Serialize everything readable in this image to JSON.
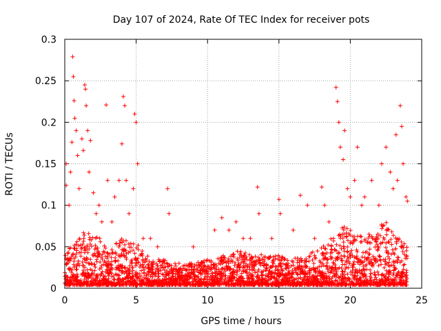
{
  "chart_data": {
    "type": "scatter",
    "title": "Day 107 of 2024, Rate Of TEC Index for receiver pots",
    "xlabel": "GPS time / hours",
    "ylabel": "ROTI / TECUs",
    "xlim": [
      0,
      25
    ],
    "ylim": [
      0,
      0.3
    ],
    "x_ticks": [
      0,
      5,
      10,
      15,
      20,
      25
    ],
    "y_ticks": [
      0,
      0.05,
      0.1,
      0.15,
      0.2,
      0.25,
      0.3
    ],
    "grid": true,
    "marker": "+",
    "series": [
      {
        "color": "#ff0000",
        "points": [
          [
            0.1,
            0.15
          ],
          [
            0.1,
            0.124
          ],
          [
            0.3,
            0.1
          ],
          [
            0.4,
            0.14
          ],
          [
            0.5,
            0.176
          ],
          [
            0.55,
            0.279
          ],
          [
            0.6,
            0.255
          ],
          [
            0.65,
            0.226
          ],
          [
            0.7,
            0.205
          ],
          [
            0.8,
            0.19
          ],
          [
            0.9,
            0.16
          ],
          [
            1.0,
            0.12
          ],
          [
            1.2,
            0.18
          ],
          [
            1.3,
            0.166
          ],
          [
            1.4,
            0.245
          ],
          [
            1.45,
            0.24
          ],
          [
            1.5,
            0.22
          ],
          [
            1.6,
            0.19
          ],
          [
            1.7,
            0.14
          ],
          [
            1.8,
            0.178
          ],
          [
            2.0,
            0.115
          ],
          [
            2.2,
            0.09
          ],
          [
            2.4,
            0.1
          ],
          [
            2.6,
            0.08
          ],
          [
            2.9,
            0.221
          ],
          [
            3.0,
            0.13
          ],
          [
            3.3,
            0.08
          ],
          [
            3.5,
            0.11
          ],
          [
            3.8,
            0.13
          ],
          [
            4.0,
            0.174
          ],
          [
            4.1,
            0.231
          ],
          [
            4.2,
            0.22
          ],
          [
            4.3,
            0.13
          ],
          [
            4.5,
            0.09
          ],
          [
            4.8,
            0.12
          ],
          [
            4.9,
            0.21
          ],
          [
            5.0,
            0.2
          ],
          [
            5.1,
            0.15
          ],
          [
            5.5,
            0.06
          ],
          [
            6.0,
            0.06
          ],
          [
            6.5,
            0.05
          ],
          [
            7.2,
            0.12
          ],
          [
            7.3,
            0.09
          ],
          [
            8.0,
            0.03
          ],
          [
            9.0,
            0.05
          ],
          [
            10.5,
            0.07
          ],
          [
            11.0,
            0.085
          ],
          [
            11.5,
            0.07
          ],
          [
            12.0,
            0.08
          ],
          [
            12.5,
            0.06
          ],
          [
            13.0,
            0.06
          ],
          [
            13.5,
            0.122
          ],
          [
            13.6,
            0.09
          ],
          [
            14.5,
            0.06
          ],
          [
            15.0,
            0.107
          ],
          [
            15.1,
            0.09
          ],
          [
            16.0,
            0.07
          ],
          [
            16.5,
            0.112
          ],
          [
            17.0,
            0.1
          ],
          [
            17.5,
            0.06
          ],
          [
            18.0,
            0.122
          ],
          [
            18.2,
            0.1
          ],
          [
            18.5,
            0.08
          ],
          [
            19.0,
            0.242
          ],
          [
            19.1,
            0.225
          ],
          [
            19.2,
            0.2
          ],
          [
            19.3,
            0.17
          ],
          [
            19.5,
            0.155
          ],
          [
            19.6,
            0.19
          ],
          [
            19.8,
            0.12
          ],
          [
            20.0,
            0.11
          ],
          [
            20.3,
            0.13
          ],
          [
            20.5,
            0.17
          ],
          [
            20.8,
            0.1
          ],
          [
            21.0,
            0.11
          ],
          [
            21.5,
            0.13
          ],
          [
            22.0,
            0.1
          ],
          [
            22.2,
            0.15
          ],
          [
            22.5,
            0.17
          ],
          [
            22.8,
            0.14
          ],
          [
            23.0,
            0.12
          ],
          [
            23.2,
            0.185
          ],
          [
            23.3,
            0.13
          ],
          [
            23.5,
            0.22
          ],
          [
            23.6,
            0.195
          ],
          [
            23.7,
            0.15
          ],
          [
            23.9,
            0.11
          ],
          [
            24.0,
            0.105
          ]
        ],
        "dense_band": [
          [
            0.0,
            0.003,
            0.045
          ],
          [
            0.5,
            0.004,
            0.05
          ],
          [
            1.0,
            0.004,
            0.06
          ],
          [
            1.5,
            0.004,
            0.075
          ],
          [
            2.0,
            0.004,
            0.065
          ],
          [
            2.5,
            0.004,
            0.06
          ],
          [
            3.0,
            0.004,
            0.05
          ],
          [
            3.5,
            0.004,
            0.055
          ],
          [
            4.0,
            0.004,
            0.065
          ],
          [
            4.5,
            0.004,
            0.06
          ],
          [
            5.0,
            0.004,
            0.055
          ],
          [
            5.5,
            0.004,
            0.045
          ],
          [
            6.0,
            0.004,
            0.04
          ],
          [
            6.5,
            0.004,
            0.035
          ],
          [
            7.0,
            0.004,
            0.035
          ],
          [
            7.5,
            0.004,
            0.03
          ],
          [
            8.0,
            0.004,
            0.03
          ],
          [
            8.5,
            0.004,
            0.03
          ],
          [
            9.0,
            0.004,
            0.03
          ],
          [
            9.5,
            0.004,
            0.032
          ],
          [
            10.0,
            0.004,
            0.035
          ],
          [
            10.5,
            0.004,
            0.035
          ],
          [
            11.0,
            0.004,
            0.04
          ],
          [
            11.5,
            0.004,
            0.04
          ],
          [
            12.0,
            0.004,
            0.045
          ],
          [
            12.5,
            0.004,
            0.045
          ],
          [
            13.0,
            0.004,
            0.04
          ],
          [
            13.5,
            0.004,
            0.042
          ],
          [
            14.0,
            0.004,
            0.04
          ],
          [
            14.5,
            0.004,
            0.038
          ],
          [
            15.0,
            0.004,
            0.04
          ],
          [
            15.5,
            0.004,
            0.038
          ],
          [
            16.0,
            0.004,
            0.036
          ],
          [
            16.5,
            0.004,
            0.038
          ],
          [
            17.0,
            0.004,
            0.04
          ],
          [
            17.5,
            0.004,
            0.045
          ],
          [
            18.0,
            0.004,
            0.05
          ],
          [
            18.5,
            0.004,
            0.06
          ],
          [
            19.0,
            0.004,
            0.07
          ],
          [
            19.5,
            0.004,
            0.075
          ],
          [
            20.0,
            0.004,
            0.07
          ],
          [
            20.5,
            0.004,
            0.065
          ],
          [
            21.0,
            0.004,
            0.06
          ],
          [
            21.5,
            0.004,
            0.07
          ],
          [
            22.0,
            0.004,
            0.075
          ],
          [
            22.5,
            0.004,
            0.08
          ],
          [
            23.0,
            0.004,
            0.07
          ],
          [
            23.5,
            0.004,
            0.06
          ],
          [
            24.0,
            0.004,
            0.05
          ]
        ]
      }
    ]
  }
}
